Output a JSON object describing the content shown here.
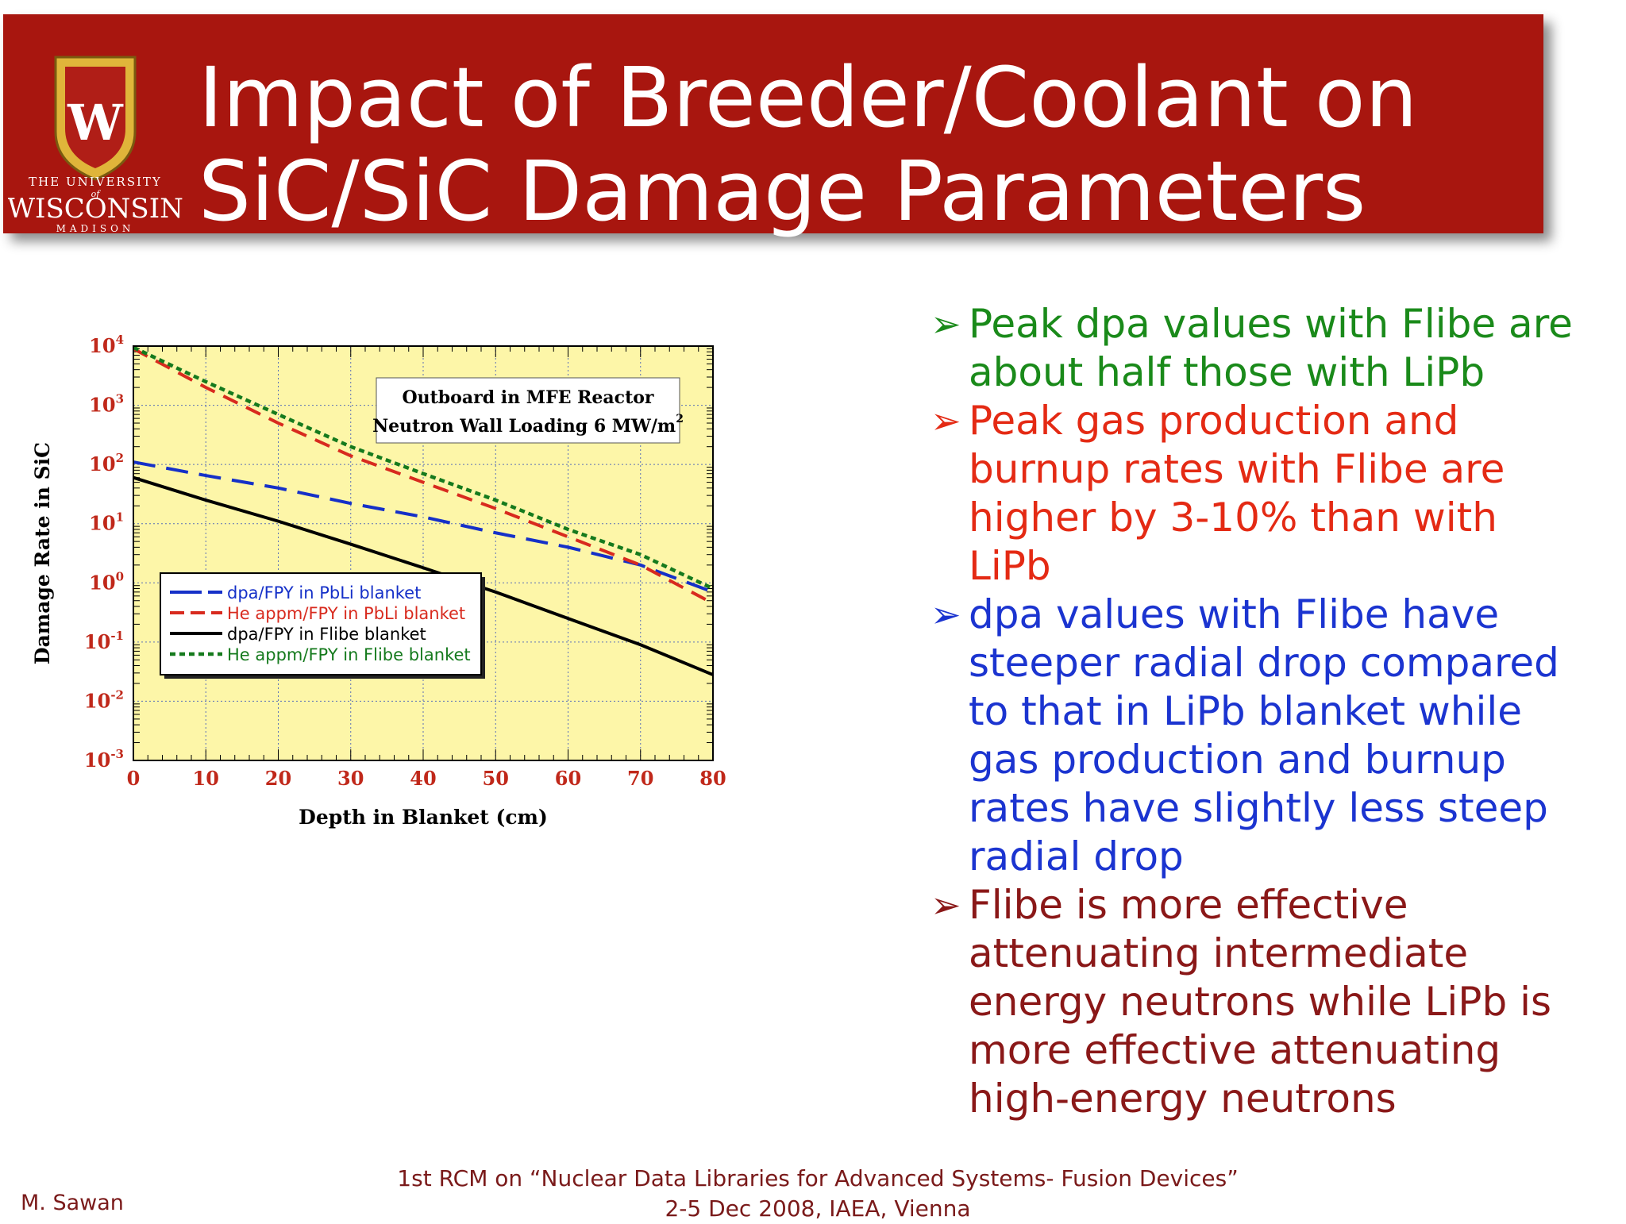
{
  "header": {
    "title_line1": "Impact of Breeder/Coolant on",
    "title_line2": "SiC/SiC Damage Parameters",
    "logo_text_top": "THE UNIVERSITY",
    "logo_text_of": "of",
    "logo_text_name": "WISCONSIN",
    "logo_text_bottom": "MADISON",
    "logo_letter": "W",
    "bar_color": "#a8160f"
  },
  "chart_data": {
    "type": "line",
    "xlabel": "Depth in Blanket (cm)",
    "ylabel": "Damage Rate in SiC",
    "xlim": [
      0,
      80
    ],
    "ylim": [
      0.001,
      10000
    ],
    "yscale": "log",
    "x_ticks": [
      "0",
      "10",
      "20",
      "30",
      "40",
      "50",
      "60",
      "70",
      "80"
    ],
    "y_ticks": [
      {
        "base": "10",
        "exp": "4",
        "value": 10000
      },
      {
        "base": "10",
        "exp": "3",
        "value": 1000
      },
      {
        "base": "10",
        "exp": "2",
        "value": 100
      },
      {
        "base": "10",
        "exp": "1",
        "value": 10
      },
      {
        "base": "10",
        "exp": "0",
        "value": 1
      },
      {
        "base": "10",
        "exp": "-1",
        "value": 0.1
      },
      {
        "base": "10",
        "exp": "-2",
        "value": 0.01
      },
      {
        "base": "10",
        "exp": "-3",
        "value": 0.001
      }
    ],
    "grid": true,
    "plot_background": "#fdf6a8",
    "annotation": {
      "line1": "Outboard in MFE Reactor",
      "line2": "Neutron Wall Loading 6 MW/m",
      "line2_sup": "2"
    },
    "legend_position": "bottom-left",
    "series": [
      {
        "name": "dpa/FPY in PbLi blanket",
        "color": "#1530c8",
        "style": "long-dash",
        "x": [
          0,
          10,
          20,
          30,
          40,
          50,
          60,
          70,
          80
        ],
        "y": [
          110,
          65,
          40,
          22,
          13,
          7,
          4,
          2,
          0.7
        ]
      },
      {
        "name": "He appm/FPY in PbLi blanket",
        "color": "#d82a1e",
        "style": "dash",
        "x": [
          0,
          10,
          20,
          30,
          40,
          50,
          60,
          70,
          80
        ],
        "y": [
          9000,
          2000,
          500,
          140,
          50,
          18,
          6,
          2,
          0.45
        ]
      },
      {
        "name": "dpa/FPY in Flibe blanket",
        "color": "#000000",
        "style": "solid",
        "x": [
          0,
          10,
          20,
          30,
          40,
          50,
          60,
          70,
          80
        ],
        "y": [
          60,
          25,
          11,
          4.5,
          1.8,
          0.7,
          0.25,
          0.09,
          0.028
        ]
      },
      {
        "name": "He appm/FPY in Flibe blanket",
        "color": "#157a1d",
        "style": "dot",
        "x": [
          0,
          10,
          20,
          30,
          40,
          50,
          60,
          70,
          80
        ],
        "y": [
          9500,
          2500,
          700,
          200,
          70,
          25,
          8,
          3,
          0.8
        ]
      }
    ]
  },
  "bullets": [
    {
      "color": "#1a8a1a",
      "lines": [
        "Peak dpa values with Flibe are",
        "about half those with LiPb"
      ]
    },
    {
      "color": "#e42a14",
      "lines": [
        "Peak gas production and",
        "burnup rates with Flibe are",
        "higher by 3-10% than with",
        "LiPb"
      ]
    },
    {
      "color": "#1b34d0",
      "lines": [
        "dpa values with Flibe have",
        "steeper radial drop compared",
        "to that in LiPb blanket while",
        "gas production and burnup",
        "rates have slightly less steep",
        "radial drop"
      ]
    },
    {
      "color": "#8a1818",
      "lines": [
        "Flibe is more effective",
        "attenuating intermediate",
        "energy neutrons while LiPb is",
        "more effective attenuating",
        "high-energy neutrons"
      ]
    }
  ],
  "bullet_symbol": "➢",
  "footer": {
    "author": "M. Sawan",
    "event_line1": "1st RCM on “Nuclear Data Libraries for Advanced Systems- Fusion Devices”",
    "event_line2": "2-5 Dec 2008, IAEA, Vienna"
  }
}
